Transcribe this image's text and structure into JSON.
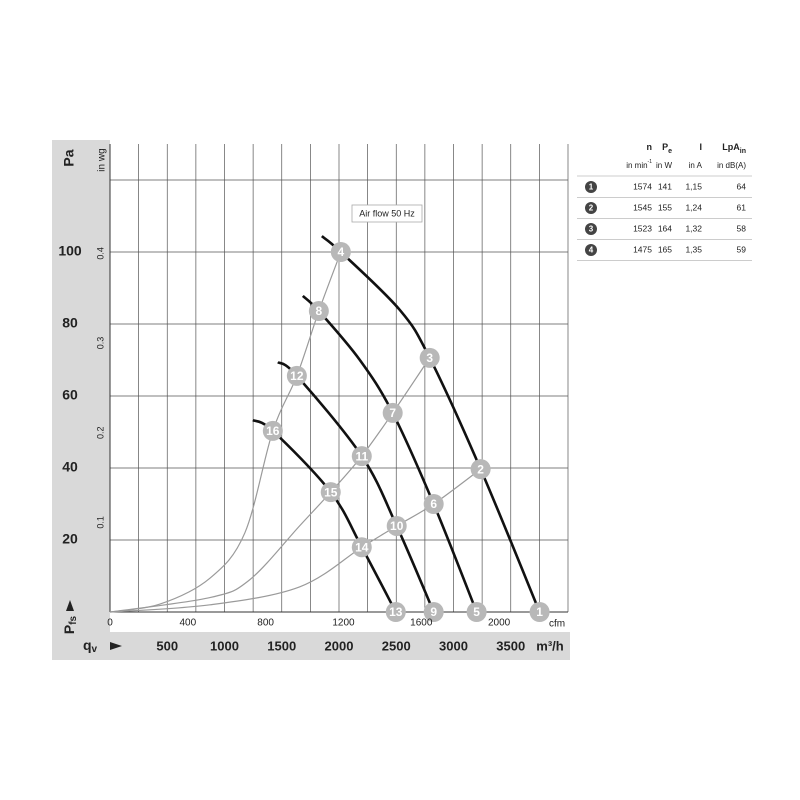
{
  "chart_data": {
    "type": "fan-curve",
    "y_label": "Pa",
    "y2_label": "in wg",
    "x_label": "m³/h",
    "x2_label": "cfm",
    "y_symbol": {
      "main": "P",
      "sub": "fs"
    },
    "x_symbol": {
      "main": "q",
      "sub": "v"
    },
    "annotation": "Air flow 50 Hz",
    "xlim": [
      0,
      4000
    ],
    "xticks": [
      500,
      1000,
      1500,
      2000,
      2500,
      3000,
      3500
    ],
    "x2lim": [
      0,
      2354
    ],
    "x2ticks": [
      0,
      400,
      800,
      1200,
      1600,
      2000
    ],
    "ylim": [
      0,
      130
    ],
    "yticks": [
      20,
      40,
      60,
      80,
      100
    ],
    "y2lim": [
      0,
      0.522
    ],
    "y2ticks": [
      0.1,
      0.2,
      0.3,
      0.4
    ],
    "xgrid": [
      250,
      500,
      750,
      1000,
      1250,
      1500,
      1750,
      2000,
      2250,
      2500,
      2750,
      3000,
      3250,
      3500,
      3750,
      4000
    ],
    "ygrid": [
      20,
      40,
      60,
      80,
      100,
      120
    ],
    "series": [
      {
        "kind": "operating",
        "color": "#111111",
        "x": [
          1850,
          2016,
          2531,
          2792,
          3237,
          3752
        ],
        "y": [
          104.4,
          100,
          83.9,
          70.6,
          39.7,
          0
        ]
      },
      {
        "kind": "operating",
        "color": "#111111",
        "x": [
          1684,
          1824,
          2182,
          2469,
          2827,
          3202
        ],
        "y": [
          87.8,
          83.6,
          70,
          55.3,
          30,
          0
        ]
      },
      {
        "kind": "operating",
        "color": "#111111",
        "x": [
          1466,
          1632,
          2199,
          2504,
          2827
        ],
        "y": [
          69.4,
          65.6,
          43.3,
          23.9,
          0
        ]
      },
      {
        "kind": "operating",
        "color": "#111111",
        "x": [
          1248,
          1422,
          1928,
          2199,
          2496
        ],
        "y": [
          53.3,
          50.3,
          33.3,
          18,
          0
        ]
      },
      {
        "kind": "system",
        "color": "#9a9a9a",
        "x": [
          0,
          436,
          873,
          1178,
          1422,
          1632,
          1824,
          2016
        ],
        "y": [
          0,
          2.2,
          9.4,
          22,
          50.3,
          65.6,
          83.6,
          100
        ]
      },
      {
        "kind": "system",
        "color": "#9a9a9a",
        "x": [
          0,
          873,
          1222,
          1658,
          1928,
          2199,
          2469,
          2792
        ],
        "y": [
          0,
          4,
          9,
          24,
          33.3,
          43.3,
          55.3,
          70.6
        ]
      },
      {
        "kind": "system",
        "color": "#9a9a9a",
        "x": [
          0,
          873,
          1658,
          2199,
          2504,
          2827,
          3237
        ],
        "y": [
          0,
          2,
          7,
          18,
          23.9,
          30,
          39.7
        ]
      }
    ],
    "points": [
      {
        "label": "1",
        "x": 3752,
        "y": 0
      },
      {
        "label": "2",
        "x": 3237,
        "y": 39.7
      },
      {
        "label": "3",
        "x": 2792,
        "y": 70.6
      },
      {
        "label": "4",
        "x": 2016,
        "y": 100
      },
      {
        "label": "5",
        "x": 3202,
        "y": 0
      },
      {
        "label": "6",
        "x": 2827,
        "y": 30
      },
      {
        "label": "7",
        "x": 2469,
        "y": 55.3
      },
      {
        "label": "8",
        "x": 1824,
        "y": 83.6
      },
      {
        "label": "9",
        "x": 2827,
        "y": 0
      },
      {
        "label": "10",
        "x": 2504,
        "y": 23.9
      },
      {
        "label": "11",
        "x": 2199,
        "y": 43.3
      },
      {
        "label": "12",
        "x": 1632,
        "y": 65.6
      },
      {
        "label": "13",
        "x": 2496,
        "y": 0
      },
      {
        "label": "14",
        "x": 2199,
        "y": 18
      },
      {
        "label": "15",
        "x": 1928,
        "y": 33.3
      },
      {
        "label": "16",
        "x": 1422,
        "y": 50.3
      }
    ]
  },
  "table": {
    "headers": [
      {
        "main": "n"
      },
      {
        "main": "P",
        "sub": "e"
      },
      {
        "main": "I"
      },
      {
        "main": "LpA",
        "sub": "in"
      }
    ],
    "units": [
      {
        "main": "in min",
        "sup": "-1"
      },
      {
        "main": "in W"
      },
      {
        "main": "in A"
      },
      {
        "main": "in dB(A)"
      }
    ],
    "rows": [
      {
        "marker": "1",
        "cells": [
          "1574",
          "141",
          "1,15",
          "64"
        ]
      },
      {
        "marker": "2",
        "cells": [
          "1545",
          "155",
          "1,24",
          "61"
        ]
      },
      {
        "marker": "3",
        "cells": [
          "1523",
          "164",
          "1,32",
          "58"
        ]
      },
      {
        "marker": "4",
        "cells": [
          "1475",
          "165",
          "1,35",
          "59"
        ]
      }
    ]
  }
}
